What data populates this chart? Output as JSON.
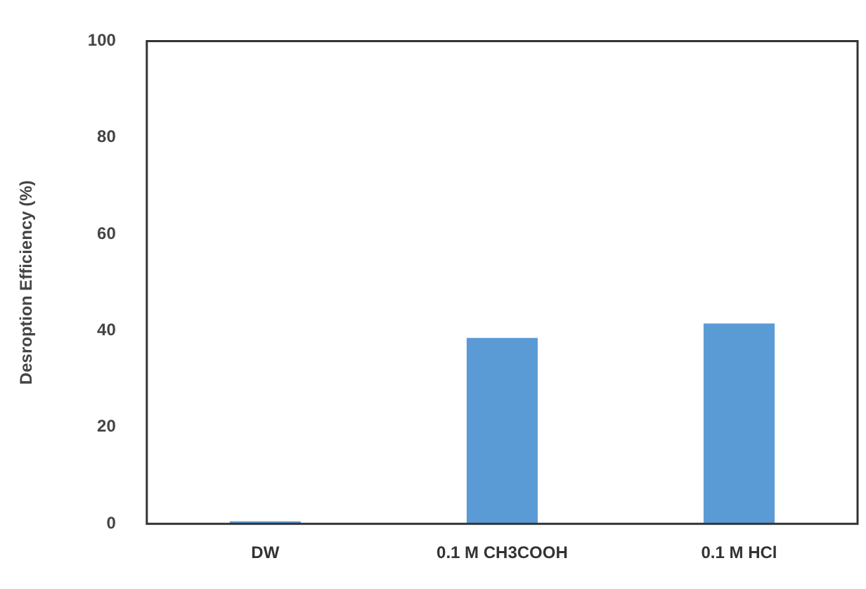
{
  "chart_data": {
    "type": "bar",
    "ylabel": "Desroption Efficiency (%)",
    "categories": [
      "DW",
      "0.1 M CH3COOH",
      "0.1 M HCl"
    ],
    "values": [
      0.5,
      38.5,
      41.5
    ],
    "color": "#5b9bd5",
    "ylim": [
      0,
      100
    ],
    "yticks": [
      0,
      20,
      40,
      60,
      80,
      100
    ],
    "grid": false,
    "legend": false
  }
}
